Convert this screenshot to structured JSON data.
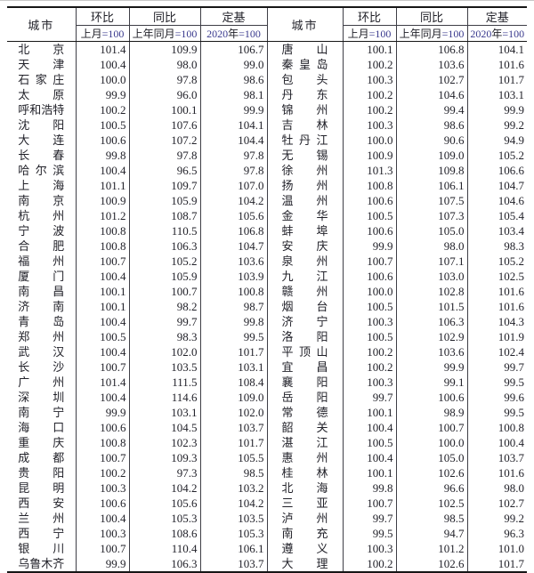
{
  "colors": {
    "background": "#ffffff",
    "outer_rule": "#161616",
    "grid_line": "#3e3e46",
    "text": "#22222a",
    "header_digit": "#3a3a8e",
    "page_top_edge": "#c8c8c8"
  },
  "chart_data": {
    "type": "table",
    "city_header": "城市",
    "index_groups": [
      {
        "label": "环比",
        "sub": "上月=100"
      },
      {
        "label": "同比",
        "sub": "上年同月=100"
      },
      {
        "label": "定基",
        "sub": "2020年=100"
      }
    ],
    "rows_left": [
      [
        "北京",
        "101.4",
        "109.9",
        "106.7"
      ],
      [
        "天津",
        "100.4",
        "98.0",
        "99.0"
      ],
      [
        "石家庄",
        "100.0",
        "97.8",
        "98.6"
      ],
      [
        "太原",
        "99.9",
        "96.0",
        "98.1"
      ],
      [
        "呼和浩特",
        "100.2",
        "100.1",
        "99.9"
      ],
      [
        "沈阳",
        "100.5",
        "107.6",
        "104.1"
      ],
      [
        "大连",
        "100.6",
        "107.2",
        "104.4"
      ],
      [
        "长春",
        "99.8",
        "97.8",
        "97.8"
      ],
      [
        "哈尔滨",
        "100.4",
        "96.5",
        "97.8"
      ],
      [
        "上海",
        "101.1",
        "109.7",
        "107.0"
      ],
      [
        "南京",
        "100.9",
        "105.9",
        "104.2"
      ],
      [
        "杭州",
        "101.2",
        "108.7",
        "105.6"
      ],
      [
        "宁波",
        "100.8",
        "110.5",
        "106.8"
      ],
      [
        "合肥",
        "100.8",
        "106.3",
        "104.7"
      ],
      [
        "福州",
        "100.7",
        "105.2",
        "103.6"
      ],
      [
        "厦门",
        "100.4",
        "105.9",
        "103.9"
      ],
      [
        "南昌",
        "100.1",
        "100.7",
        "100.8"
      ],
      [
        "济南",
        "100.1",
        "98.2",
        "98.7"
      ],
      [
        "青岛",
        "100.4",
        "99.7",
        "99.8"
      ],
      [
        "郑州",
        "100.5",
        "98.3",
        "99.5"
      ],
      [
        "武汉",
        "100.4",
        "102.0",
        "101.7"
      ],
      [
        "长沙",
        "100.7",
        "103.5",
        "103.1"
      ],
      [
        "广州",
        "101.4",
        "111.5",
        "108.4"
      ],
      [
        "深圳",
        "100.4",
        "114.6",
        "109.0"
      ],
      [
        "南宁",
        "99.9",
        "103.1",
        "102.0"
      ],
      [
        "海口",
        "100.6",
        "104.5",
        "103.7"
      ],
      [
        "重庆",
        "100.8",
        "102.3",
        "101.7"
      ],
      [
        "成都",
        "100.7",
        "109.3",
        "105.5"
      ],
      [
        "贵阳",
        "100.2",
        "97.3",
        "98.5"
      ],
      [
        "昆明",
        "100.3",
        "104.2",
        "103.2"
      ],
      [
        "西安",
        "100.6",
        "105.6",
        "104.2"
      ],
      [
        "兰州",
        "100.4",
        "105.3",
        "103.5"
      ],
      [
        "西宁",
        "100.3",
        "108.6",
        "105.3"
      ],
      [
        "银川",
        "100.7",
        "110.4",
        "106.1"
      ],
      [
        "乌鲁木齐",
        "99.9",
        "106.3",
        "103.7"
      ]
    ],
    "rows_right": [
      [
        "唐山",
        "100.1",
        "106.8",
        "104.1"
      ],
      [
        "秦皇岛",
        "100.2",
        "103.6",
        "101.6"
      ],
      [
        "包头",
        "100.3",
        "102.7",
        "101.7"
      ],
      [
        "丹东",
        "100.2",
        "104.6",
        "103.1"
      ],
      [
        "锦州",
        "100.2",
        "99.4",
        "99.9"
      ],
      [
        "吉林",
        "100.3",
        "98.6",
        "99.2"
      ],
      [
        "牡丹江",
        "100.0",
        "90.6",
        "94.9"
      ],
      [
        "无锡",
        "100.9",
        "109.0",
        "105.2"
      ],
      [
        "徐州",
        "101.3",
        "109.8",
        "106.6"
      ],
      [
        "扬州",
        "100.8",
        "106.1",
        "104.7"
      ],
      [
        "温州",
        "100.6",
        "107.5",
        "104.6"
      ],
      [
        "金华",
        "100.5",
        "107.3",
        "105.4"
      ],
      [
        "蚌埠",
        "100.6",
        "105.0",
        "103.4"
      ],
      [
        "安庆",
        "99.9",
        "98.0",
        "98.3"
      ],
      [
        "泉州",
        "100.7",
        "107.1",
        "105.2"
      ],
      [
        "九江",
        "100.6",
        "103.0",
        "102.5"
      ],
      [
        "赣州",
        "100.0",
        "102.8",
        "101.6"
      ],
      [
        "烟台",
        "100.5",
        "101.5",
        "101.6"
      ],
      [
        "济宁",
        "100.3",
        "106.3",
        "104.3"
      ],
      [
        "洛阳",
        "100.5",
        "102.9",
        "101.9"
      ],
      [
        "平顶山",
        "100.2",
        "103.6",
        "102.4"
      ],
      [
        "宜昌",
        "100.2",
        "99.9",
        "99.7"
      ],
      [
        "襄阳",
        "100.3",
        "99.1",
        "99.5"
      ],
      [
        "岳阳",
        "99.7",
        "100.6",
        "99.6"
      ],
      [
        "常德",
        "100.1",
        "98.9",
        "99.5"
      ],
      [
        "韶关",
        "100.4",
        "100.7",
        "100.8"
      ],
      [
        "湛江",
        "100.5",
        "100.0",
        "100.4"
      ],
      [
        "惠州",
        "100.4",
        "105.0",
        "103.7"
      ],
      [
        "桂林",
        "100.1",
        "102.6",
        "101.6"
      ],
      [
        "北海",
        "99.8",
        "96.6",
        "98.0"
      ],
      [
        "三亚",
        "100.7",
        "102.5",
        "102.7"
      ],
      [
        "泸州",
        "99.7",
        "98.5",
        "99.2"
      ],
      [
        "南充",
        "99.5",
        "94.7",
        "96.3"
      ],
      [
        "遵义",
        "100.3",
        "101.2",
        "101.0"
      ],
      [
        "大理",
        "100.2",
        "102.6",
        "101.7"
      ]
    ]
  }
}
